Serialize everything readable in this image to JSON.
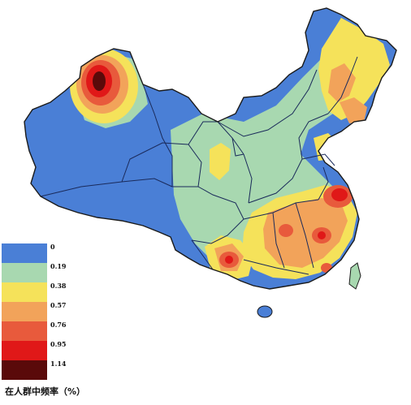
{
  "colors": {
    "ocean": "#ffffff",
    "level_0": "#4a7fd6",
    "level_1": "#a8d8b0",
    "level_2": "#f5e25a",
    "level_3": "#f2a35a",
    "level_4": "#e85a3c",
    "level_5": "#e01818",
    "level_6": "#5a0a0a",
    "border": "#1a2a5a",
    "outline": "#1a1a1a"
  },
  "legend": {
    "items": [
      {
        "label": "0",
        "color": "#4a7fd6"
      },
      {
        "label": "0.19",
        "color": "#a8d8b0"
      },
      {
        "label": "0.38",
        "color": "#f5e25a"
      },
      {
        "label": "0.57",
        "color": "#f2a35a"
      },
      {
        "label": "0.76",
        "color": "#e85a3c"
      },
      {
        "label": "0.95",
        "color": "#e01818"
      },
      {
        "label": "1.14",
        "color": "#5a0a0a"
      }
    ],
    "caption": "在人群中频率（%）"
  }
}
